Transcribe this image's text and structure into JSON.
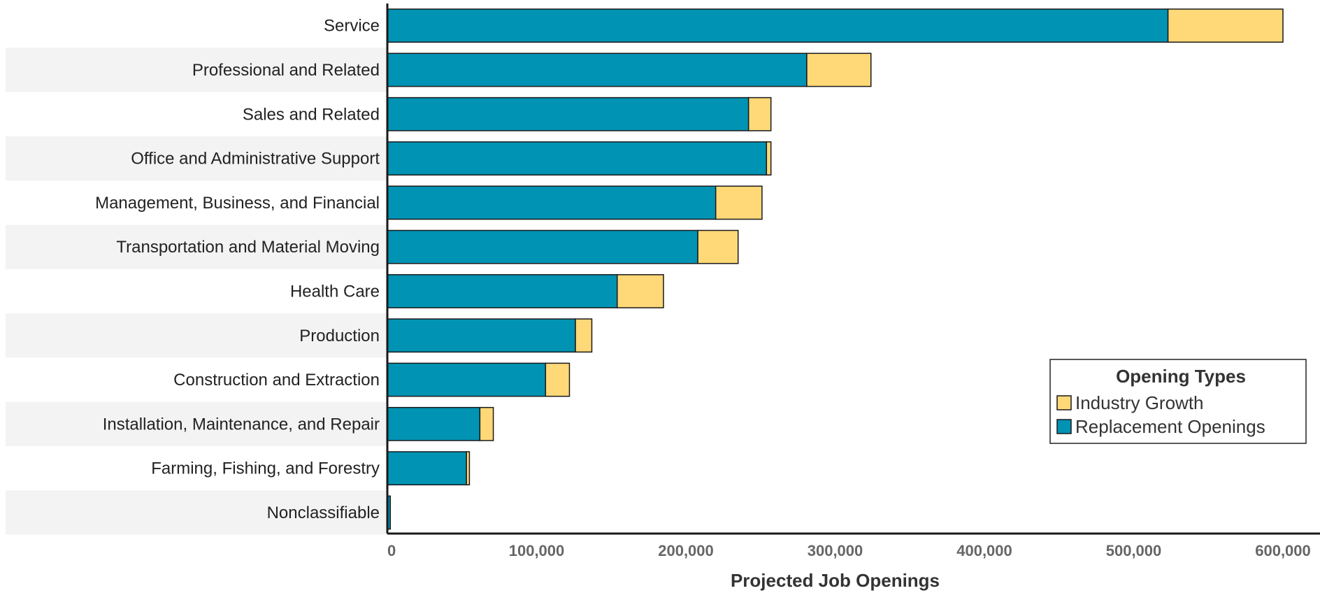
{
  "chart_data": {
    "type": "bar",
    "orientation": "horizontal",
    "stacked": true,
    "categories": [
      "Service",
      "Professional and Related",
      "Sales and Related",
      "Office and Administrative Support",
      "Management, Business, and Financial",
      "Transportation and Material Moving",
      "Health Care",
      "Production",
      "Construction and Extraction",
      "Installation, Maintenance, and Repair",
      "Farming, Fishing, and Forestry",
      "Nonclassifiable"
    ],
    "series": [
      {
        "name": "Replacement Openings",
        "color": "#0093B4",
        "values": [
          523000,
          281000,
          242000,
          254000,
          220000,
          208000,
          154000,
          126000,
          106000,
          62000,
          53000,
          2000
        ]
      },
      {
        "name": "Industry Growth",
        "color": "#FFD878",
        "values": [
          77000,
          43000,
          15000,
          3000,
          31000,
          27000,
          31000,
          11000,
          16000,
          9000,
          2000,
          0
        ]
      }
    ],
    "xlabel": "Projected Job Openings",
    "ylabel": "",
    "xlim": [
      0,
      600000
    ],
    "xticks": [
      0,
      100000,
      200000,
      300000,
      400000,
      500000,
      600000
    ],
    "xtick_labels": [
      "0",
      "100,000",
      "200,000",
      "300,000",
      "400,000",
      "500,000",
      "600,000"
    ],
    "grid": false,
    "row_banding": true,
    "legend": {
      "title": "Opening Types",
      "position": "right",
      "entries": [
        "Industry Growth",
        "Replacement Openings"
      ]
    }
  }
}
